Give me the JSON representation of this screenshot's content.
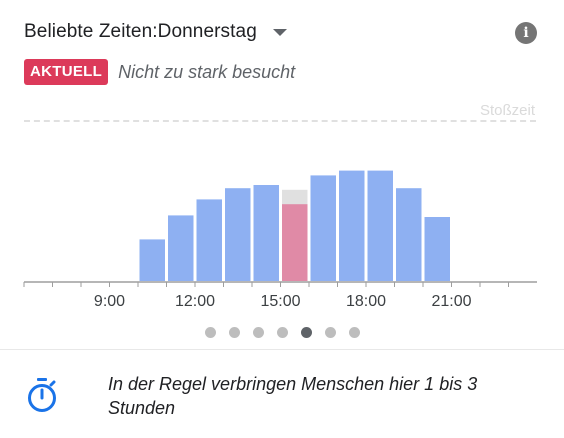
{
  "header": {
    "title": "Beliebte Zeiten:",
    "day": "Donnerstag",
    "info_icon": "info-icon"
  },
  "status": {
    "badge": "AKTUELL",
    "text": "Nicht zu stark besucht",
    "badge_color": "#dc3a5a"
  },
  "peak_label": "Stoßzeit",
  "chart_data": {
    "type": "bar",
    "hours": [
      6,
      7,
      8,
      9,
      10,
      11,
      12,
      13,
      14,
      15,
      16,
      17,
      18,
      19,
      20,
      21,
      22,
      23
    ],
    "values": [
      0,
      0,
      0,
      0,
      26,
      41,
      51,
      58,
      60,
      57,
      66,
      69,
      69,
      58,
      40,
      0,
      0,
      0
    ],
    "live": {
      "hour": 15,
      "value": 48,
      "color": "#e08aa6"
    },
    "live_overlay_color": "#e0e0e0",
    "bar_color": "#8eb0f2",
    "tick_labels": [
      "9:00",
      "12:00",
      "15:00",
      "18:00",
      "21:00"
    ],
    "tick_hours": [
      9,
      12,
      15,
      18,
      21
    ],
    "ylim": [
      0,
      100
    ],
    "peak_line_value": 100,
    "grid": false
  },
  "pager": {
    "count": 7,
    "active_index": 4,
    "active_color": "#5f6368",
    "inactive_color": "#bdbdbd"
  },
  "duration": {
    "icon": "stopwatch-icon",
    "text": "In der Regel verbringen Menschen hier 1 bis 3 Stunden",
    "icon_color": "#1a73e8"
  }
}
